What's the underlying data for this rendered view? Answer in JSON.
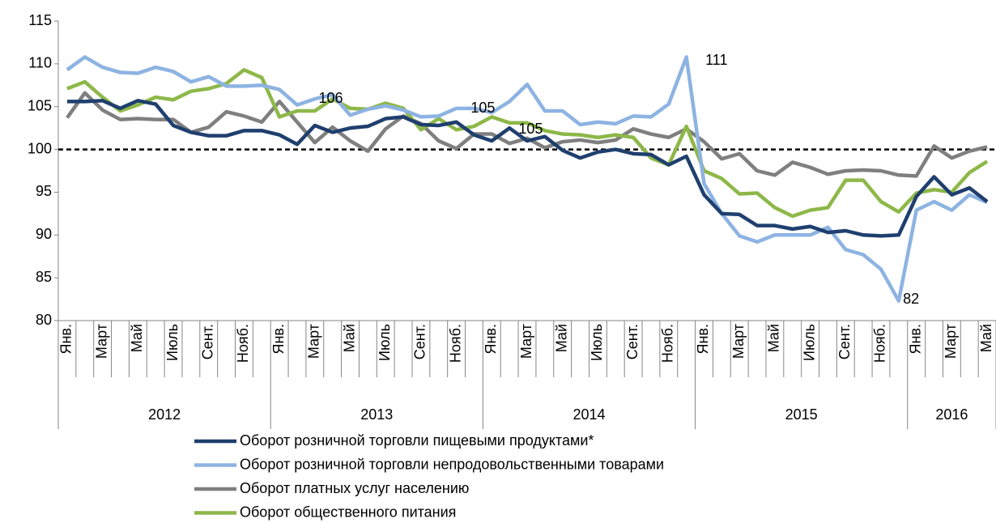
{
  "chart_data": {
    "type": "line",
    "categories": [
      "Янв.",
      null,
      "Март",
      null,
      "Май",
      null,
      "Июль",
      null,
      "Сент.",
      null,
      "Нояб.",
      null,
      "Янв.",
      null,
      "Март",
      null,
      "Май",
      null,
      "Июль",
      null,
      "Сент.",
      null,
      "Нояб.",
      null,
      "Янв.",
      null,
      "Март",
      null,
      "Май",
      null,
      "Июль",
      null,
      "Сент.",
      null,
      "Нояб.",
      null,
      "Янв.",
      null,
      "Март",
      null,
      "Май",
      null,
      "Июль",
      null,
      "Сент.",
      null,
      "Нояб.",
      null,
      "Янв.",
      null,
      "Март",
      null,
      "Май"
    ],
    "years": [
      "2012",
      "2013",
      "2014",
      "2015",
      "2016"
    ],
    "ylim": [
      80,
      115
    ],
    "yticks": [
      80,
      85,
      90,
      95,
      100,
      105,
      110,
      115
    ],
    "reference_line": 100,
    "series": [
      {
        "name": "Оборот розничной торговли пищевыми продуктами*",
        "color": "#1f3f6e",
        "values": [
          105.6,
          105.6,
          105.7,
          104.8,
          105.7,
          105.3,
          102.8,
          102.0,
          101.6,
          101.6,
          102.2,
          102.2,
          101.7,
          100.6,
          102.8,
          102.0,
          102.5,
          102.7,
          103.6,
          103.8,
          102.9,
          102.8,
          103.2,
          101.7,
          101.0,
          102.5,
          101.0,
          101.5,
          99.9,
          99.0,
          99.7,
          100.0,
          99.5,
          99.4,
          98.2,
          99.2,
          94.7,
          92.5,
          92.4,
          91.1,
          91.1,
          90.7,
          91.0,
          90.3,
          90.5,
          90.0,
          89.9,
          90.0,
          94.5,
          96.8,
          94.7,
          95.5,
          93.9
        ]
      },
      {
        "name": "Оборот розничной торговли непродовольственными товарами",
        "color": "#8db3e2",
        "values": [
          109.3,
          110.8,
          109.6,
          109.0,
          108.9,
          109.6,
          109.1,
          107.9,
          108.5,
          107.4,
          107.4,
          107.5,
          107.0,
          105.2,
          105.9,
          106.4,
          104.0,
          104.7,
          105.1,
          104.6,
          103.8,
          103.9,
          104.8,
          104.8,
          104.3,
          105.6,
          107.6,
          104.5,
          104.5,
          102.9,
          103.2,
          103.0,
          103.9,
          103.8,
          105.3,
          110.8,
          96.0,
          92.5,
          89.9,
          89.2,
          90.0,
          90.0,
          90.0,
          90.9,
          88.3,
          87.7,
          86.0,
          82.3,
          92.9,
          93.9,
          92.9,
          94.7,
          93.8
        ]
      },
      {
        "name": "Оборот платных услуг населению",
        "color": "#7f7f7f",
        "values": [
          103.7,
          106.6,
          104.6,
          103.5,
          103.6,
          103.5,
          103.5,
          102.0,
          102.6,
          104.4,
          103.9,
          103.2,
          105.6,
          103.2,
          100.8,
          102.6,
          101.0,
          99.8,
          102.4,
          103.9,
          103.0,
          101.0,
          100.1,
          101.8,
          101.8,
          100.7,
          101.3,
          100.2,
          100.9,
          101.1,
          100.8,
          101.1,
          102.4,
          101.8,
          101.4,
          102.4,
          100.9,
          98.9,
          99.5,
          97.5,
          97.0,
          98.5,
          97.9,
          97.1,
          97.5,
          97.6,
          97.5,
          97.0,
          96.9,
          100.4,
          99.0,
          99.8,
          100.3
        ]
      },
      {
        "name": "Оборот общественного питания",
        "color": "#8db849",
        "values": [
          107.1,
          107.9,
          106.1,
          104.5,
          105.2,
          106.1,
          105.8,
          106.8,
          107.1,
          107.7,
          109.3,
          108.4,
          103.8,
          104.5,
          104.5,
          105.9,
          104.8,
          104.7,
          105.4,
          104.8,
          102.3,
          103.6,
          102.3,
          102.7,
          103.8,
          103.1,
          103.1,
          102.2,
          101.8,
          101.7,
          101.4,
          101.7,
          101.4,
          99.0,
          98.2,
          102.7,
          97.5,
          96.6,
          94.8,
          94.9,
          93.2,
          92.2,
          92.9,
          93.2,
          96.4,
          96.4,
          93.9,
          92.7,
          94.9,
          95.3,
          95.0,
          97.3,
          98.6
        ]
      }
    ],
    "annotations": [
      "106",
      "105",
      "105",
      "111",
      "82"
    ]
  }
}
